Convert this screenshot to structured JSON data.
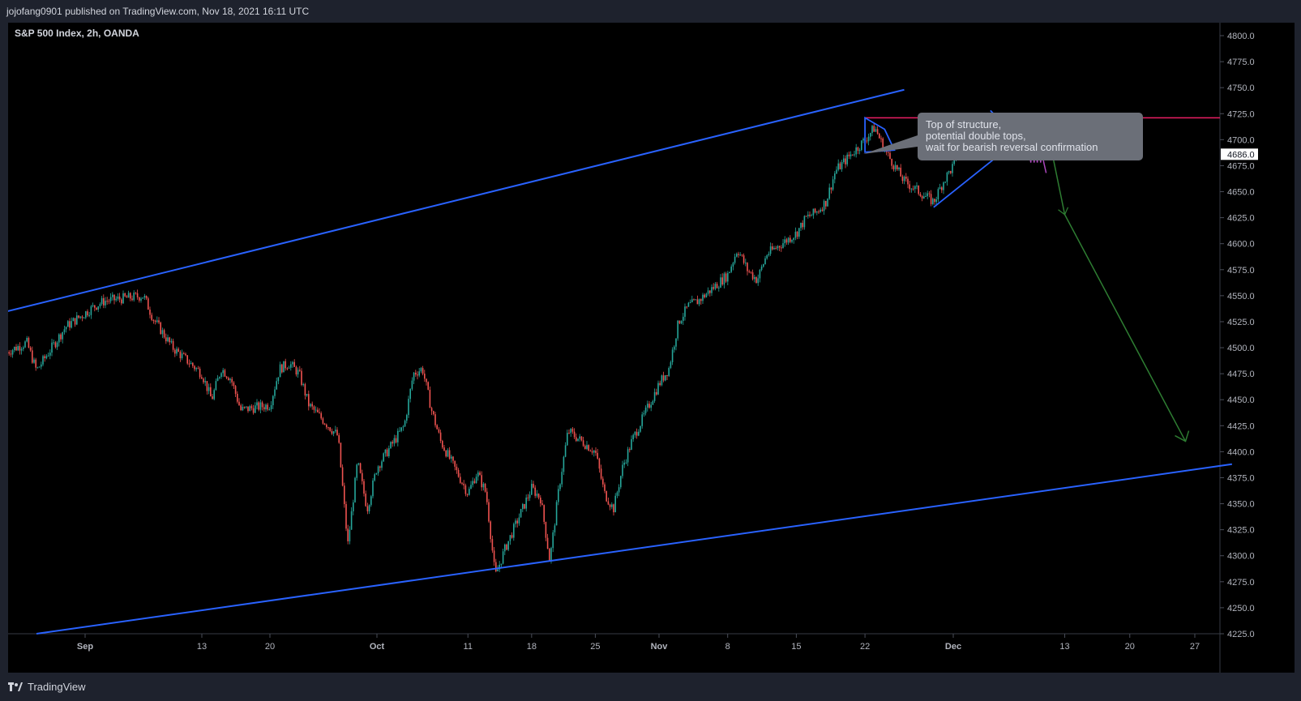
{
  "header": {
    "publish_line": "jojofang0901 published on TradingView.com, Nov 18, 2021 16:11 UTC"
  },
  "chart_title": "S&P 500 Index, 2h, OANDA",
  "footer": {
    "brand": "TradingView"
  },
  "colors": {
    "background": "#000000",
    "frame": "#1e222d",
    "up_candle": "#26a69a",
    "down_candle": "#ef5350",
    "channel_line": "#2962ff",
    "resistance_line": "#e91e63",
    "projection_arrow": "#2e7d32",
    "forecast_path": "#ab47bc",
    "axis_text": "#b2b5be",
    "callout_bg": "#6b6f78"
  },
  "chart_data": {
    "type": "candlestick",
    "symbol": "S&P 500 Index",
    "interval": "2h",
    "source": "OANDA",
    "ylim": [
      4225,
      4810
    ],
    "price_axis_ticks": [
      "4800.0",
      "4775.0",
      "4750.0",
      "4725.0",
      "4700.0",
      "4675.0",
      "4650.0",
      "4625.0",
      "4600.0",
      "4575.0",
      "4550.0",
      "4525.0",
      "4500.0",
      "4475.0",
      "4450.0",
      "4425.0",
      "4400.0",
      "4375.0",
      "4350.0",
      "4325.0",
      "4300.0",
      "4275.0",
      "4250.0",
      "4225.0"
    ],
    "time_axis_ticks": [
      "Sep",
      "13",
      "20",
      "Oct",
      "11",
      "18",
      "25",
      "Nov",
      "8",
      "15",
      "22",
      "Dec",
      "13",
      "20",
      "27"
    ],
    "time_axis_dates": [
      "2021-09-01",
      "2021-09-13",
      "2021-09-20",
      "2021-10-01",
      "2021-10-11",
      "2021-10-18",
      "2021-10-25",
      "2021-11-01",
      "2021-11-08",
      "2021-11-15",
      "2021-11-22",
      "2021-12-01",
      "2021-12-13",
      "2021-12-20",
      "2021-12-27"
    ],
    "current_price_label": "4686.0",
    "price_path": [
      [
        "2021-08-24",
        4496
      ],
      [
        "2021-08-26",
        4505
      ],
      [
        "2021-08-27",
        4478
      ],
      [
        "2021-08-30",
        4520
      ],
      [
        "2021-09-02",
        4540
      ],
      [
        "2021-09-03",
        4545
      ],
      [
        "2021-09-07",
        4550
      ],
      [
        "2021-09-08",
        4528
      ],
      [
        "2021-09-10",
        4500
      ],
      [
        "2021-09-13",
        4475
      ],
      [
        "2021-09-14",
        4450
      ],
      [
        "2021-09-15",
        4480
      ],
      [
        "2021-09-16",
        4470
      ],
      [
        "2021-09-17",
        4440
      ],
      [
        "2021-09-20",
        4445
      ],
      [
        "2021-09-21",
        4480
      ],
      [
        "2021-09-22",
        4485
      ],
      [
        "2021-09-23",
        4475
      ],
      [
        "2021-09-24",
        4445
      ],
      [
        "2021-09-27",
        4415
      ],
      [
        "2021-09-28",
        4310
      ],
      [
        "2021-09-29",
        4390
      ],
      [
        "2021-09-30",
        4345
      ],
      [
        "2021-10-01",
        4385
      ],
      [
        "2021-10-04",
        4425
      ],
      [
        "2021-10-05",
        4475
      ],
      [
        "2021-10-06",
        4480
      ],
      [
        "2021-10-07",
        4440
      ],
      [
        "2021-10-08",
        4410
      ],
      [
        "2021-10-11",
        4360
      ],
      [
        "2021-10-12",
        4380
      ],
      [
        "2021-10-13",
        4360
      ],
      [
        "2021-10-14",
        4280
      ],
      [
        "2021-10-15",
        4305
      ],
      [
        "2021-10-18",
        4365
      ],
      [
        "2021-10-19",
        4355
      ],
      [
        "2021-10-20",
        4295
      ],
      [
        "2021-10-21",
        4365
      ],
      [
        "2021-10-22",
        4420
      ],
      [
        "2021-10-25",
        4400
      ],
      [
        "2021-10-26",
        4360
      ],
      [
        "2021-10-27",
        4345
      ],
      [
        "2021-10-28",
        4385
      ],
      [
        "2021-10-29",
        4410
      ],
      [
        "2021-11-01",
        4465
      ],
      [
        "2021-11-02",
        4480
      ],
      [
        "2021-11-03",
        4525
      ],
      [
        "2021-11-04",
        4540
      ],
      [
        "2021-11-05",
        4545
      ],
      [
        "2021-11-08",
        4570
      ],
      [
        "2021-11-09",
        4595
      ],
      [
        "2021-11-10",
        4575
      ],
      [
        "2021-11-11",
        4565
      ],
      [
        "2021-11-12",
        4590
      ],
      [
        "2021-11-15",
        4610
      ],
      [
        "2021-11-16",
        4625
      ],
      [
        "2021-11-17",
        4630
      ],
      [
        "2021-11-18",
        4640
      ],
      [
        "2021-11-19",
        4670
      ],
      [
        "2021-11-22",
        4700
      ],
      [
        "2021-11-23",
        4712
      ],
      [
        "2021-11-24",
        4690
      ],
      [
        "2021-11-25",
        4675
      ],
      [
        "2021-11-26",
        4660
      ],
      [
        "2021-11-29",
        4640
      ],
      [
        "2021-11-30",
        4660
      ],
      [
        "2021-12-01",
        4675
      ],
      [
        "2021-12-02",
        4700
      ],
      [
        "2021-12-03",
        4700
      ],
      [
        "2021-12-06",
        4705
      ],
      [
        "2021-12-07",
        4695
      ],
      [
        "2021-12-08",
        4690
      ]
    ],
    "drawings": {
      "upper_channel": [
        [
          "2021-08-24",
          4535
        ],
        [
          "2021-11-26",
          4748
        ]
      ],
      "lower_channel": [
        [
          "2021-08-27",
          4225
        ],
        [
          "2021-12-31",
          4388
        ]
      ],
      "resistance": {
        "price": 4721,
        "from": "2021-11-22"
      },
      "triangle": [
        [
          "2021-11-22",
          4721
        ],
        [
          "2021-11-24",
          4710
        ],
        [
          "2021-11-25",
          4690
        ],
        [
          "2021-11-22",
          4688
        ]
      ],
      "wedge": [
        [
          "2021-11-29",
          4635
        ],
        [
          "2021-12-08",
          4700
        ],
        [
          "2021-12-05",
          4728
        ]
      ],
      "projection_arrow": [
        [
          "2021-12-11",
          4715
        ],
        [
          "2021-12-13",
          4628
        ],
        [
          "2021-12-26",
          4410
        ]
      ],
      "forecast_path": [
        [
          "2021-12-09",
          4700
        ],
        [
          "2021-12-10",
          4670
        ],
        [
          "2021-12-11",
          4668
        ]
      ]
    },
    "annotation": {
      "lines": [
        "Top of structure,",
        "potential double tops,",
        "wait for bearish reversal confirmation"
      ]
    }
  }
}
